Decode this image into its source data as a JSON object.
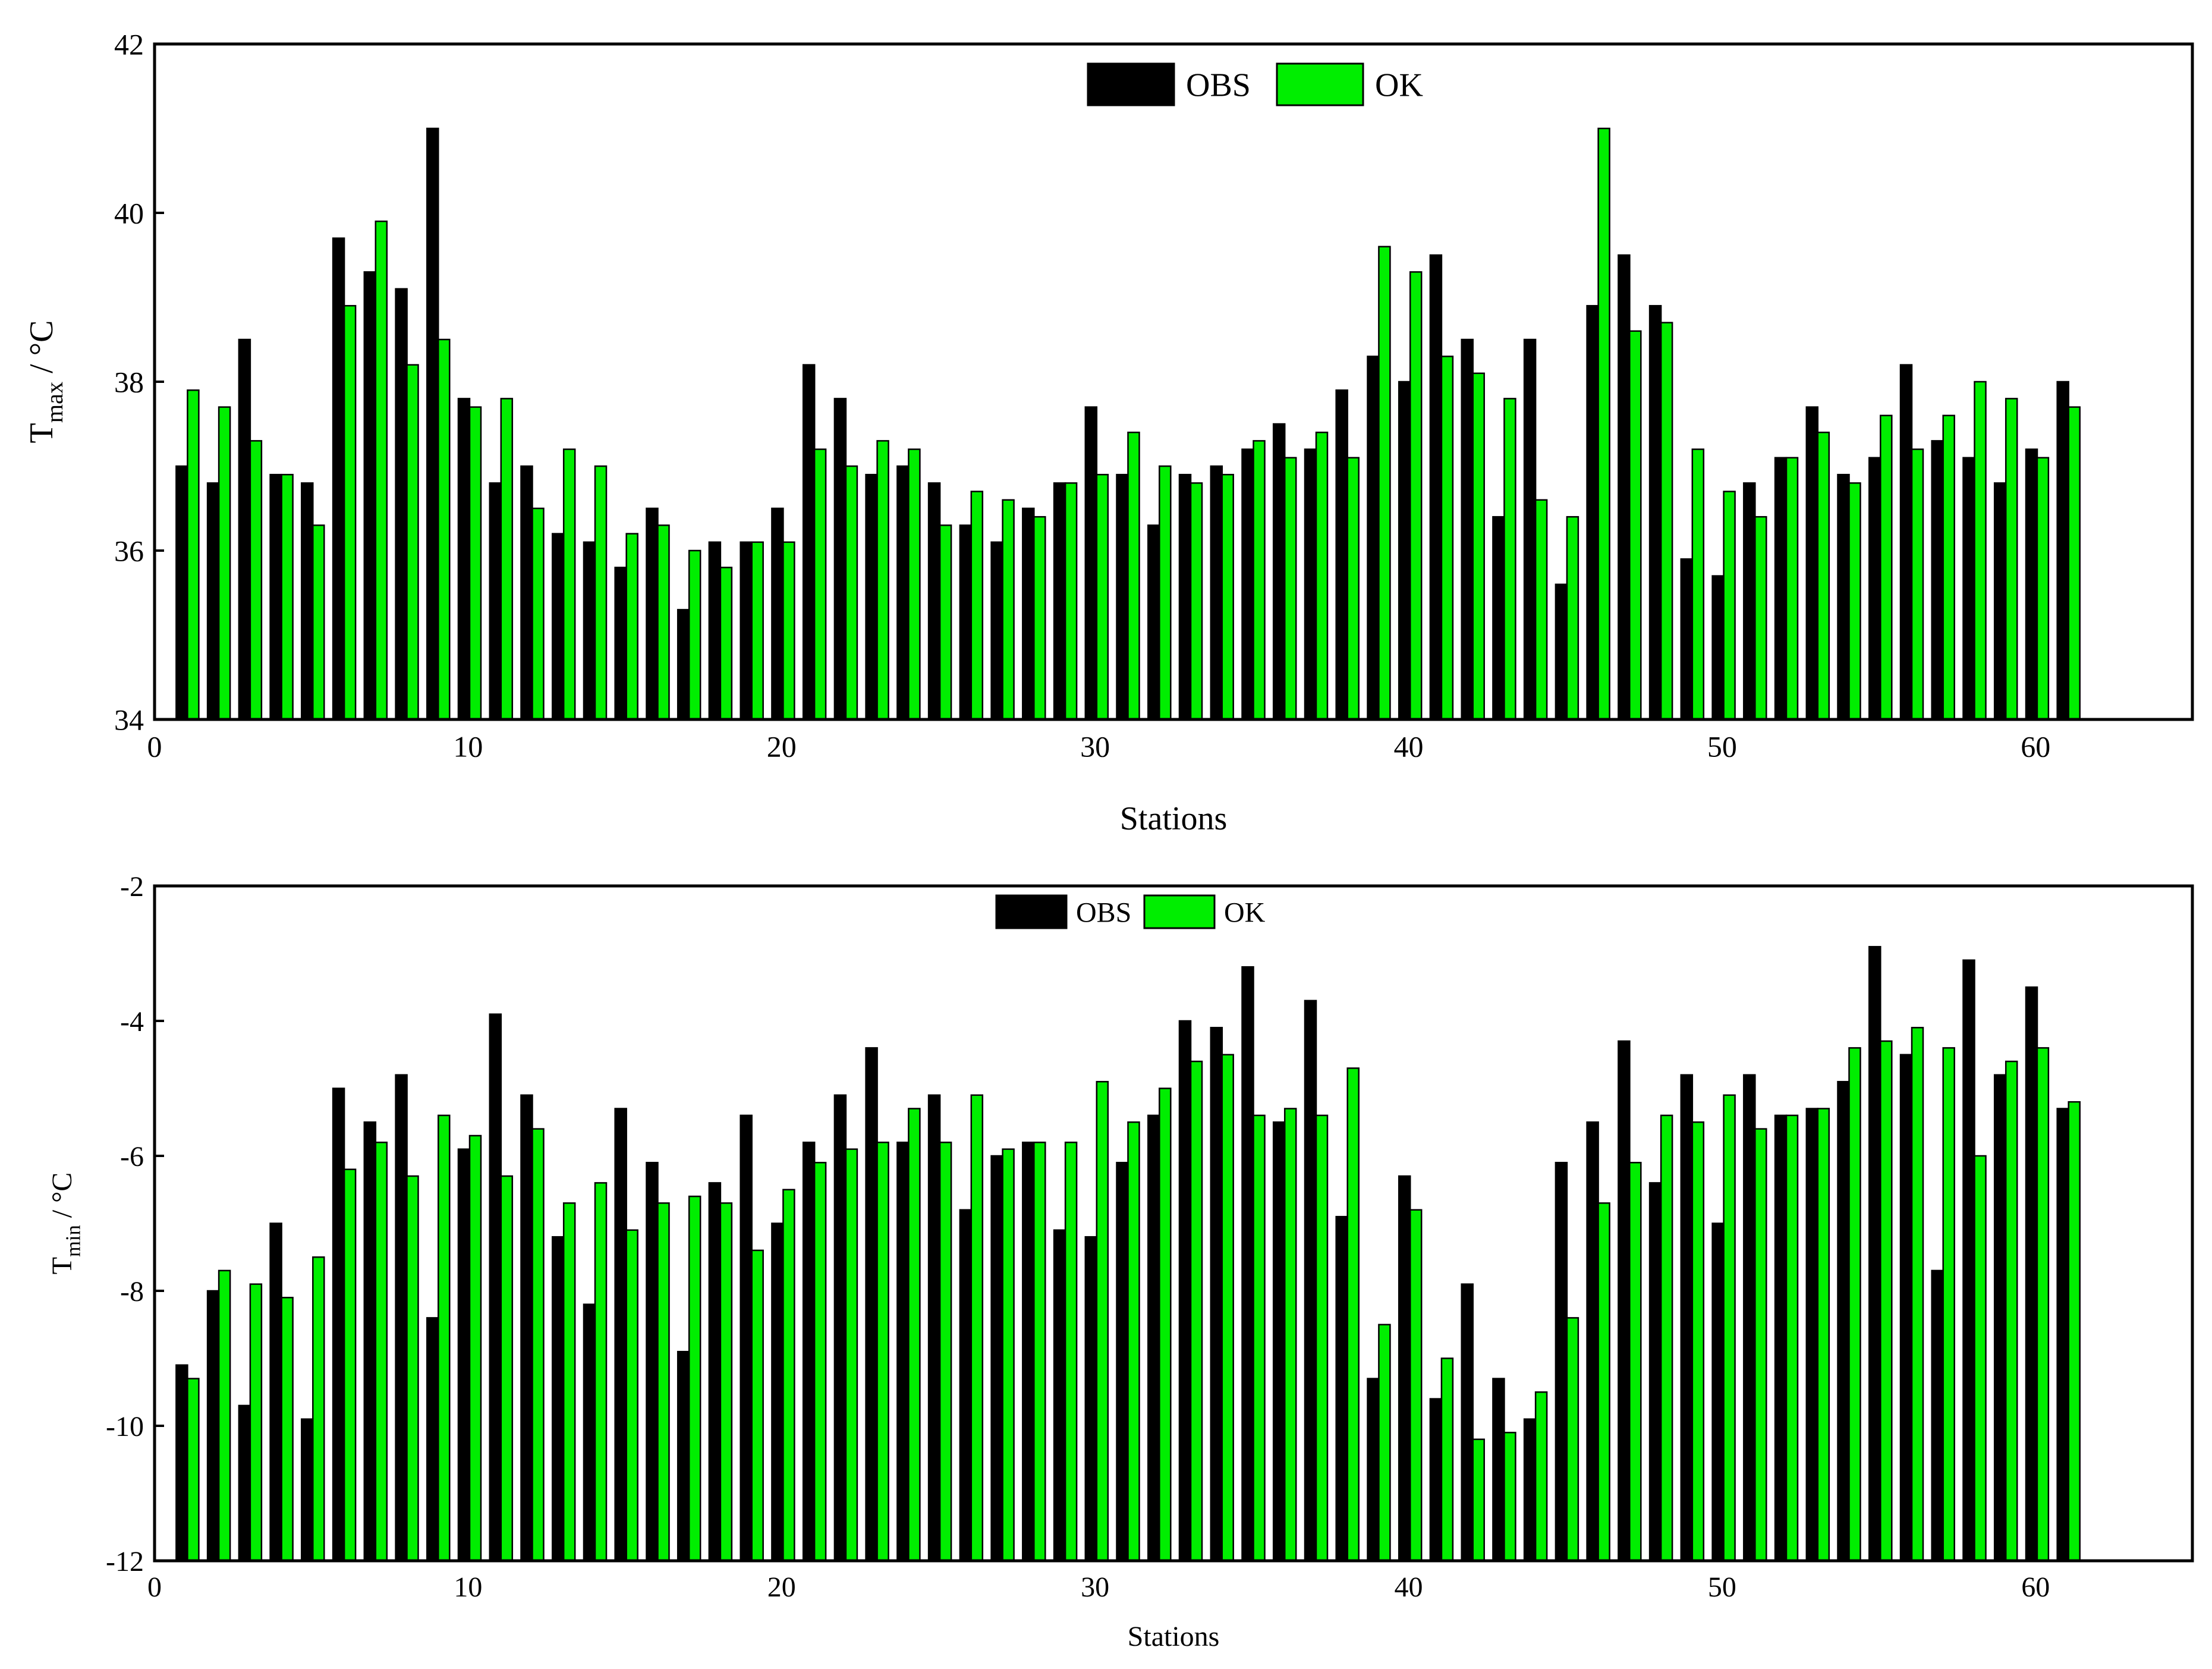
{
  "colors": {
    "obs": "#000000",
    "ok": "#00ee00",
    "bar_stroke": "#000000"
  },
  "legend": {
    "obs": "OBS",
    "ok": "OK"
  },
  "chart_data": [
    {
      "type": "bar",
      "legend_position": "top-center",
      "xlabel": "Stations",
      "ylabel_main": "T",
      "ylabel_sub": "max",
      "ylabel_unit": " / °C",
      "xlim": [
        0,
        65
      ],
      "ylim": [
        34,
        42
      ],
      "xticks": [
        0,
        10,
        20,
        30,
        40,
        50,
        60
      ],
      "yticks": [
        34,
        36,
        38,
        40,
        42
      ],
      "x": [
        1,
        2,
        3,
        4,
        5,
        6,
        7,
        8,
        9,
        10,
        11,
        12,
        13,
        14,
        15,
        16,
        17,
        18,
        19,
        20,
        21,
        22,
        23,
        24,
        25,
        26,
        27,
        28,
        29,
        30,
        31,
        32,
        33,
        34,
        35,
        36,
        37,
        38,
        39,
        40,
        41,
        42,
        43,
        44,
        45,
        46,
        47,
        48,
        49,
        50,
        51,
        52,
        53,
        54,
        55,
        56,
        57,
        58,
        59,
        60,
        61
      ],
      "series": [
        {
          "name": "OBS",
          "values": [
            37.0,
            36.8,
            38.5,
            36.9,
            36.8,
            39.7,
            39.3,
            39.1,
            41.0,
            37.8,
            36.8,
            37.0,
            36.2,
            36.1,
            35.8,
            36.5,
            35.3,
            36.1,
            36.1,
            36.5,
            38.2,
            37.8,
            36.9,
            37.0,
            36.8,
            36.3,
            36.1,
            36.5,
            36.8,
            37.7,
            36.9,
            36.3,
            36.9,
            37.0,
            37.2,
            37.5,
            37.2,
            37.9,
            38.3,
            38.0,
            39.5,
            38.5,
            36.4,
            38.5,
            35.6,
            38.9,
            39.5,
            38.9,
            35.9,
            35.7,
            36.8,
            37.1,
            37.7,
            36.9,
            37.1,
            38.2,
            37.3,
            37.1,
            36.8,
            37.2,
            38.0
          ]
        },
        {
          "name": "OK",
          "values": [
            37.9,
            37.7,
            37.3,
            36.9,
            36.3,
            38.9,
            39.9,
            38.2,
            38.5,
            37.7,
            37.8,
            36.5,
            37.2,
            37.0,
            36.2,
            36.3,
            36.0,
            35.8,
            36.1,
            36.1,
            37.2,
            37.0,
            37.3,
            37.2,
            36.3,
            36.7,
            36.6,
            36.4,
            36.8,
            36.9,
            37.4,
            37.0,
            36.8,
            36.9,
            37.3,
            37.1,
            37.4,
            37.1,
            39.6,
            39.3,
            38.3,
            38.1,
            37.8,
            36.6,
            36.4,
            41.0,
            38.6,
            38.7,
            37.2,
            36.7,
            36.4,
            37.1,
            37.4,
            36.8,
            37.6,
            37.2,
            37.6,
            38.0,
            37.8,
            37.1,
            37.7
          ]
        }
      ]
    },
    {
      "type": "bar",
      "legend_position": "top-center",
      "xlabel": "Stations",
      "ylabel_main": "T",
      "ylabel_sub": "min",
      "ylabel_unit": " / °C",
      "xlim": [
        0,
        65
      ],
      "ylim": [
        -12,
        -2
      ],
      "xticks": [
        0,
        10,
        20,
        30,
        40,
        50,
        60
      ],
      "yticks": [
        -12,
        -10,
        -8,
        -6,
        -4,
        -2
      ],
      "x": [
        1,
        2,
        3,
        4,
        5,
        6,
        7,
        8,
        9,
        10,
        11,
        12,
        13,
        14,
        15,
        16,
        17,
        18,
        19,
        20,
        21,
        22,
        23,
        24,
        25,
        26,
        27,
        28,
        29,
        30,
        31,
        32,
        33,
        34,
        35,
        36,
        37,
        38,
        39,
        40,
        41,
        42,
        43,
        44,
        45,
        46,
        47,
        48,
        49,
        50,
        51,
        52,
        53,
        54,
        55,
        56,
        57,
        58,
        59,
        60,
        61
      ],
      "series": [
        {
          "name": "OBS",
          "values": [
            -9.1,
            -8.0,
            -9.7,
            -7.0,
            -9.9,
            -5.0,
            -5.5,
            -4.8,
            -8.4,
            -5.9,
            -3.9,
            -5.1,
            -7.2,
            -8.2,
            -5.3,
            -6.1,
            -8.9,
            -6.4,
            -5.4,
            -7.0,
            -5.8,
            -5.1,
            -4.4,
            -5.8,
            -5.1,
            -6.8,
            -6.0,
            -5.8,
            -7.1,
            -7.2,
            -6.1,
            -5.4,
            -4.0,
            -4.1,
            -3.2,
            -5.5,
            -3.7,
            -6.9,
            -9.3,
            -6.3,
            -9.6,
            -7.9,
            -9.3,
            -9.9,
            -6.1,
            -5.5,
            -4.3,
            -6.4,
            -4.8,
            -7.0,
            -4.8,
            -5.4,
            -5.3,
            -4.9,
            -2.9,
            -4.5,
            -7.7,
            -3.1,
            -4.8,
            -3.5,
            -5.3
          ]
        },
        {
          "name": "OK",
          "values": [
            -9.3,
            -7.7,
            -7.9,
            -8.1,
            -7.5,
            -6.2,
            -5.8,
            -6.3,
            -5.4,
            -5.7,
            -6.3,
            -5.6,
            -6.7,
            -6.4,
            -7.1,
            -6.7,
            -6.6,
            -6.7,
            -7.4,
            -6.5,
            -6.1,
            -5.9,
            -5.8,
            -5.3,
            -5.8,
            -5.1,
            -5.9,
            -5.8,
            -5.8,
            -4.9,
            -5.5,
            -5.0,
            -4.6,
            -4.5,
            -5.4,
            -5.3,
            -5.4,
            -4.7,
            -8.5,
            -6.8,
            -9.0,
            -10.2,
            -10.1,
            -9.5,
            -8.4,
            -6.7,
            -6.1,
            -5.4,
            -5.5,
            -5.1,
            -5.6,
            -5.4,
            -5.3,
            -4.4,
            -4.3,
            -4.1,
            -4.4,
            -6.0,
            -4.6,
            -4.4,
            -5.2
          ]
        }
      ]
    }
  ]
}
